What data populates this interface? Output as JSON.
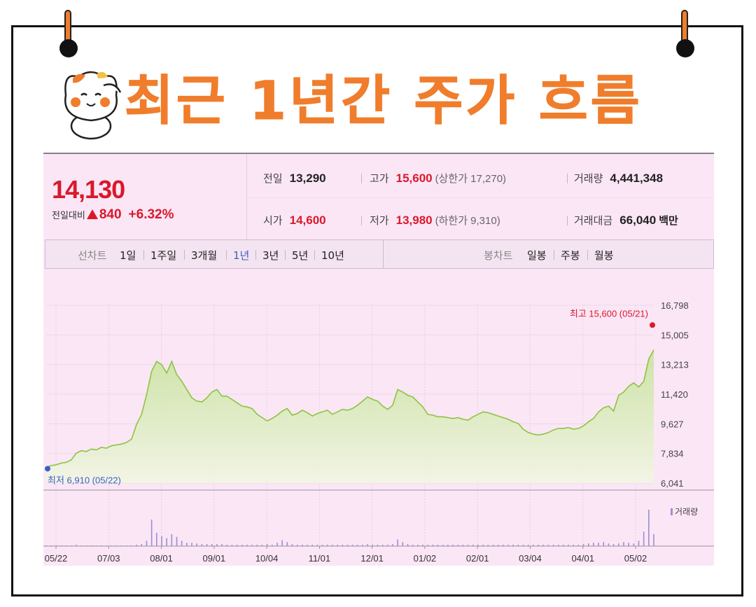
{
  "title": "최근 1년간 주가 흐름",
  "quote": {
    "price": "14,130",
    "change_label": "전일대비",
    "change_value": "840",
    "change_pct": "+6.32%",
    "prev_close_label": "전일",
    "prev_close": "13,290",
    "high_label": "고가",
    "high": "15,600",
    "upper_limit": "(상한가 17,270)",
    "volume_label": "거래량",
    "volume": "4,441,348",
    "open_label": "시가",
    "open": "14,600",
    "low_label": "저가",
    "low": "13,980",
    "lower_limit": "(하한가 9,310)",
    "amount_label": "거래대금",
    "amount": "66,040",
    "amount_unit": "백만"
  },
  "tabs": {
    "line_chart_label": "선차트",
    "periods": [
      "1일",
      "1주일",
      "3개월",
      "1년",
      "3년",
      "5년",
      "10년"
    ],
    "active_period": "1년",
    "candle_chart_label": "봉차트",
    "candles": [
      "일봉",
      "주봉",
      "월봉"
    ]
  },
  "colors": {
    "accent": "#f07d2c",
    "up": "#d9192a",
    "active_tab": "#3d5fc4",
    "line": "#8dc43f",
    "volume": "#9b8fcf"
  },
  "chart_data": {
    "type": "area",
    "x_ticks": [
      "05/22",
      "07/03",
      "08/01",
      "09/01",
      "10/04",
      "11/01",
      "12/01",
      "01/02",
      "02/01",
      "03/04",
      "04/01",
      "05/02"
    ],
    "y_ticks": [
      "16,798",
      "15,005",
      "13,213",
      "11,420",
      "9,627",
      "7,834",
      "6,041"
    ],
    "ylim": [
      6041,
      16798
    ],
    "max_annotation": "최고 15,600 (05/21)",
    "min_annotation": "최저 6,910 (05/22)",
    "max_value": 15600,
    "min_value": 6910,
    "volume_label": "거래량",
    "series": [
      {
        "values": [
          7000,
          7100,
          7150,
          7250,
          7300,
          7450,
          7850,
          8000,
          7950,
          8100,
          8050,
          8200,
          8150,
          8300,
          8350,
          8400,
          8500,
          8700,
          9600,
          10200,
          11400,
          12800,
          13400,
          13200,
          12700,
          13400,
          12600,
          12200,
          11700,
          11200,
          11000,
          10950,
          11200,
          11550,
          11700,
          11300,
          11300,
          11100,
          10900,
          10700,
          10650,
          10550,
          10200,
          10000,
          9800,
          9950,
          10150,
          10400,
          10550,
          10150,
          10250,
          10450,
          10300,
          10100,
          10250,
          10350,
          10450,
          10200,
          10350,
          10500,
          10450,
          10550,
          10750,
          11000,
          11250,
          11100,
          11000,
          10700,
          10500,
          10750,
          11700,
          11550,
          11350,
          11250,
          10950,
          10650,
          10200,
          10150,
          10050,
          10050,
          10000,
          9950,
          10000,
          9900,
          9850,
          10050,
          10200,
          10350,
          10300,
          10200,
          10100,
          10000,
          9900,
          9750,
          9650,
          9300,
          9100,
          9000,
          8950,
          9000,
          9100,
          9250,
          9350,
          9350,
          9400,
          9300,
          9350,
          9500,
          9750,
          9950,
          10350,
          10600,
          10700,
          10400,
          11350,
          11550,
          11900,
          12100,
          11850,
          12200,
          13550,
          14100
        ]
      }
    ],
    "volume_values": [
      1,
      1,
      1,
      1,
      1,
      1,
      2,
      1,
      1,
      1,
      1,
      1,
      1,
      1,
      1,
      1,
      1,
      1,
      2,
      3,
      8,
      40,
      20,
      15,
      12,
      18,
      14,
      8,
      5,
      5,
      4,
      3,
      3,
      3,
      3,
      3,
      2,
      2,
      2,
      2,
      2,
      2,
      2,
      2,
      3,
      2,
      5,
      9,
      6,
      3,
      2,
      2,
      2,
      2,
      2,
      2,
      2,
      2,
      2,
      2,
      2,
      2,
      2,
      2,
      3,
      2,
      2,
      2,
      2,
      3,
      10,
      6,
      3,
      2,
      2,
      2,
      2,
      2,
      2,
      2,
      2,
      2,
      2,
      2,
      2,
      2,
      2,
      2,
      2,
      2,
      2,
      2,
      2,
      2,
      2,
      2,
      2,
      2,
      2,
      2,
      2,
      2,
      2,
      2,
      2,
      2,
      2,
      3,
      4,
      5,
      5,
      6,
      4,
      3,
      4,
      6,
      5,
      4,
      8,
      22,
      55,
      18
    ]
  }
}
